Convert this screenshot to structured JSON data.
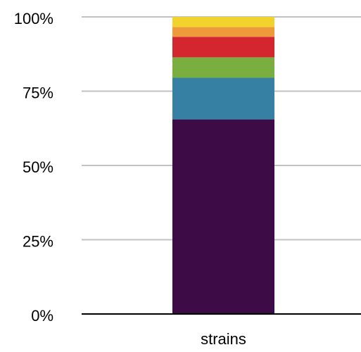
{
  "chart_data": {
    "type": "bar",
    "stacked": true,
    "normalized": true,
    "categories": [
      "strains"
    ],
    "series": [
      {
        "values": [
          65.5
        ],
        "color": "#3d0c46"
      },
      {
        "values": [
          14.0
        ],
        "color": "#3680a3"
      },
      {
        "values": [
          6.9
        ],
        "color": "#7aae40"
      },
      {
        "values": [
          6.9
        ],
        "color": "#d4262e"
      },
      {
        "values": [
          3.3
        ],
        "color": "#ef9a3a"
      },
      {
        "values": [
          3.4
        ],
        "color": "#f2d22c"
      }
    ],
    "ylim": [
      0,
      100
    ],
    "yticks": [
      0,
      25,
      50,
      75,
      100
    ],
    "ytick_labels": [
      "0%",
      "25%",
      "50%",
      "75%",
      "100%"
    ],
    "grid": true,
    "grid_color": "#c2c2c2",
    "axis_color": "#000000",
    "text_color": "#000000"
  }
}
